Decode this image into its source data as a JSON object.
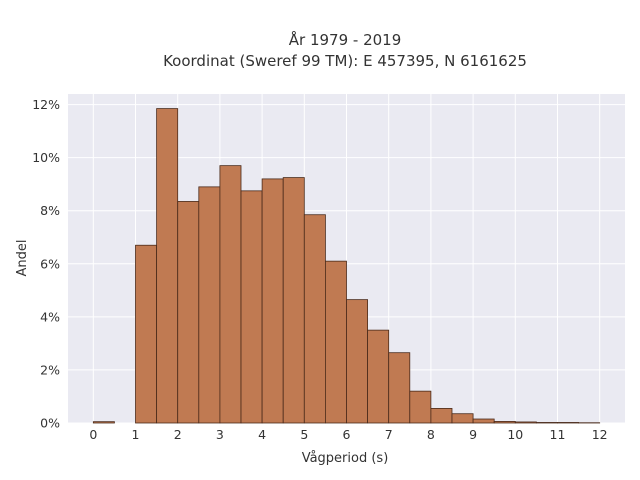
{
  "chart_data": {
    "type": "bar",
    "title_lines": [
      "År 1979 - 2019",
      "Koordinat (Sweref 99 TM): E 457395, N 6161625"
    ],
    "xlabel": "Vågperiod (s)",
    "ylabel": "Andel",
    "x_ticks": [
      "0",
      "1",
      "2",
      "3",
      "4",
      "5",
      "6",
      "7",
      "8",
      "9",
      "10",
      "11",
      "12"
    ],
    "y_ticks": [
      "0%",
      "2%",
      "4%",
      "6%",
      "8%",
      "10%",
      "12%"
    ],
    "xlim": [
      -0.6,
      12.6
    ],
    "ylim": [
      0,
      12.4
    ],
    "bin_width": 0.5,
    "bins": [
      {
        "x0": 0.0,
        "x1": 0.5,
        "value": 0.05
      },
      {
        "x0": 1.0,
        "x1": 1.5,
        "value": 6.7
      },
      {
        "x0": 1.5,
        "x1": 2.0,
        "value": 11.85
      },
      {
        "x0": 2.0,
        "x1": 2.5,
        "value": 8.35
      },
      {
        "x0": 2.5,
        "x1": 3.0,
        "value": 8.9
      },
      {
        "x0": 3.0,
        "x1": 3.5,
        "value": 9.7
      },
      {
        "x0": 3.5,
        "x1": 4.0,
        "value": 8.75
      },
      {
        "x0": 4.0,
        "x1": 4.5,
        "value": 9.2
      },
      {
        "x0": 4.5,
        "x1": 5.0,
        "value": 9.25
      },
      {
        "x0": 5.0,
        "x1": 5.5,
        "value": 7.85
      },
      {
        "x0": 5.5,
        "x1": 6.0,
        "value": 6.1
      },
      {
        "x0": 6.0,
        "x1": 6.5,
        "value": 4.65
      },
      {
        "x0": 6.5,
        "x1": 7.0,
        "value": 3.5
      },
      {
        "x0": 7.0,
        "x1": 7.5,
        "value": 2.65
      },
      {
        "x0": 7.5,
        "x1": 8.0,
        "value": 1.2
      },
      {
        "x0": 8.0,
        "x1": 8.5,
        "value": 0.55
      },
      {
        "x0": 8.5,
        "x1": 9.0,
        "value": 0.35
      },
      {
        "x0": 9.0,
        "x1": 9.5,
        "value": 0.15
      },
      {
        "x0": 9.5,
        "x1": 10.0,
        "value": 0.06
      },
      {
        "x0": 10.0,
        "x1": 10.5,
        "value": 0.04
      },
      {
        "x0": 10.5,
        "x1": 11.0,
        "value": 0.02
      },
      {
        "x0": 11.0,
        "x1": 11.5,
        "value": 0.02
      },
      {
        "x0": 11.5,
        "x1": 12.0,
        "value": 0.01
      }
    ],
    "grid": true,
    "colors": {
      "bar_fill": "#c07a52",
      "bar_edge": "#4a2a1a",
      "plot_background": "#eaeaf2",
      "grid": "#ffffff"
    }
  }
}
